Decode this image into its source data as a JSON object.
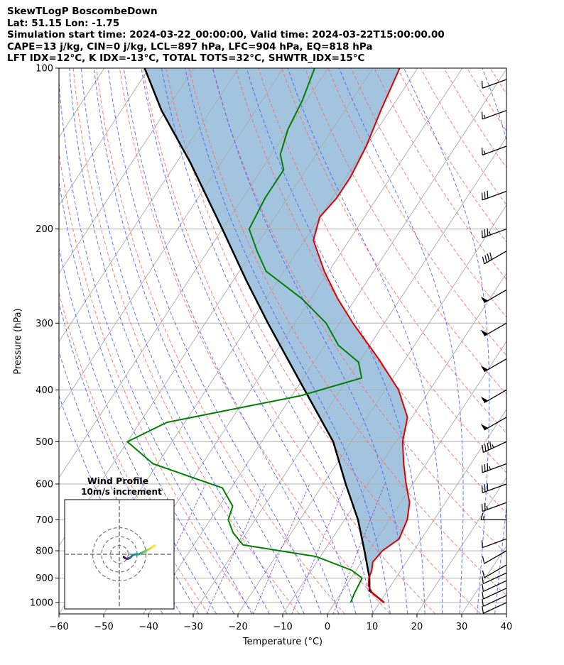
{
  "header": {
    "line1": "SkewTLogP BoscombeDown",
    "line2": "Lat: 51.15   Lon: -1.75",
    "line3": "Simulation start time: 2024-03-22_00:00:00, Valid time: 2024-03-22T15:00:00.00",
    "line4": "CAPE=13 j/kg, CIN=0 j/kg, LCL=897 hPa, LFC=904 hPa, EQ=818 hPa",
    "line5": "LFT IDX=12°C, K IDX=-13°C, TOTAL TOTS=32°C, SHWTR_IDX=15°C"
  },
  "chart_data": {
    "type": "line",
    "xlabel": "Temperature (°C)",
    "ylabel": "Pressure (hPa)",
    "xlim": [
      -60,
      40
    ],
    "ylim": [
      1050,
      100
    ],
    "y_scale": "log",
    "skew": true,
    "grid": true,
    "x_ticks": [
      -60,
      -50,
      -40,
      -30,
      -20,
      -10,
      0,
      10,
      20,
      30,
      40
    ],
    "y_ticks": [
      100,
      200,
      300,
      400,
      500,
      600,
      700,
      800,
      900,
      1000
    ],
    "colors": {
      "temperature": "#e00000",
      "dewpoint": "#008000",
      "parcel": "#000000",
      "cape_fill": "#a3c4de",
      "dry_adiabats": "#ff6666",
      "moist_adiabats": "#4a5cff",
      "mixing_ratio": "#9040c0",
      "isotherms": "#aaaaaa"
    },
    "series": [
      {
        "kind": "temperature",
        "points": [
          [
            1000,
            11
          ],
          [
            960,
            7
          ],
          [
            930,
            5
          ],
          [
            900,
            4
          ],
          [
            870,
            3.5
          ],
          [
            840,
            2.5
          ],
          [
            800,
            3
          ],
          [
            760,
            5
          ],
          [
            700,
            4
          ],
          [
            650,
            2
          ],
          [
            600,
            -1.5
          ],
          [
            550,
            -5
          ],
          [
            500,
            -8.5
          ],
          [
            450,
            -11
          ],
          [
            400,
            -17
          ],
          [
            350,
            -26
          ],
          [
            300,
            -37
          ],
          [
            270,
            -44
          ],
          [
            240,
            -51
          ],
          [
            210,
            -58
          ],
          [
            190,
            -60
          ],
          [
            175,
            -59
          ],
          [
            160,
            -59
          ],
          [
            140,
            -60
          ],
          [
            120,
            -62
          ],
          [
            100,
            -64
          ]
        ]
      },
      {
        "kind": "dewpoint",
        "points": [
          [
            1000,
            3.5
          ],
          [
            960,
            3
          ],
          [
            900,
            2.5
          ],
          [
            870,
            -1
          ],
          [
            820,
            -11
          ],
          [
            780,
            -29
          ],
          [
            740,
            -33
          ],
          [
            700,
            -36
          ],
          [
            660,
            -37
          ],
          [
            610,
            -42
          ],
          [
            550,
            -61
          ],
          [
            500,
            -70
          ],
          [
            460,
            -64
          ],
          [
            410,
            -38
          ],
          [
            380,
            -27
          ],
          [
            355,
            -30
          ],
          [
            330,
            -37
          ],
          [
            300,
            -43
          ],
          [
            270,
            -52
          ],
          [
            240,
            -64
          ],
          [
            220,
            -69
          ],
          [
            200,
            -74
          ],
          [
            175,
            -75
          ],
          [
            155,
            -75
          ],
          [
            145,
            -78
          ],
          [
            130,
            -80
          ],
          [
            115,
            -81
          ],
          [
            100,
            -83
          ]
        ]
      },
      {
        "kind": "parcel",
        "points": [
          [
            1000,
            11
          ],
          [
            950,
            6
          ],
          [
            897,
            4
          ],
          [
            800,
            -1
          ],
          [
            700,
            -7
          ],
          [
            600,
            -15
          ],
          [
            500,
            -24
          ],
          [
            400,
            -38
          ],
          [
            300,
            -56
          ],
          [
            250,
            -67
          ],
          [
            200,
            -80
          ],
          [
            150,
            -97
          ],
          [
            120,
            -111
          ],
          [
            100,
            -121
          ]
        ]
      }
    ],
    "wind_barbs": [
      {
        "p": 1000,
        "dir": 245,
        "speed_kt": 10
      },
      {
        "p": 970,
        "dir": 245,
        "speed_kt": 10
      },
      {
        "p": 940,
        "dir": 245,
        "speed_kt": 10
      },
      {
        "p": 910,
        "dir": 245,
        "speed_kt": 10
      },
      {
        "p": 880,
        "dir": 245,
        "speed_kt": 10
      },
      {
        "p": 850,
        "dir": 240,
        "speed_kt": 10
      },
      {
        "p": 800,
        "dir": 240,
        "speed_kt": 10
      },
      {
        "p": 760,
        "dir": 250,
        "speed_kt": 10
      },
      {
        "p": 700,
        "dir": 270,
        "speed_kt": 15
      },
      {
        "p": 650,
        "dir": 250,
        "speed_kt": 25
      },
      {
        "p": 600,
        "dir": 250,
        "speed_kt": 30
      },
      {
        "p": 550,
        "dir": 250,
        "speed_kt": 35
      },
      {
        "p": 500,
        "dir": 245,
        "speed_kt": 45
      },
      {
        "p": 450,
        "dir": 240,
        "speed_kt": 50
      },
      {
        "p": 400,
        "dir": 240,
        "speed_kt": 50
      },
      {
        "p": 350,
        "dir": 240,
        "speed_kt": 50
      },
      {
        "p": 300,
        "dir": 240,
        "speed_kt": 50
      },
      {
        "p": 260,
        "dir": 240,
        "speed_kt": 50
      },
      {
        "p": 220,
        "dir": 240,
        "speed_kt": 40
      },
      {
        "p": 200,
        "dir": 250,
        "speed_kt": 35
      },
      {
        "p": 170,
        "dir": 250,
        "speed_kt": 30
      },
      {
        "p": 140,
        "dir": 250,
        "speed_kt": 15
      },
      {
        "p": 120,
        "dir": 250,
        "speed_kt": 15
      },
      {
        "p": 105,
        "dir": 250,
        "speed_kt": 10
      }
    ],
    "hodograph": {
      "title": "Wind Profile",
      "subtitle": "10m/s increment",
      "rings_ms": [
        10,
        20,
        30
      ],
      "points": [
        [
          5,
          -3
        ],
        [
          6,
          -4
        ],
        [
          8,
          -5
        ],
        [
          10,
          -5
        ],
        [
          12,
          -4
        ],
        [
          13,
          -3
        ],
        [
          14,
          -2
        ],
        [
          15,
          -1
        ],
        [
          18,
          0
        ],
        [
          22,
          0
        ],
        [
          24,
          1
        ],
        [
          26,
          2
        ],
        [
          28,
          3
        ],
        [
          30,
          4
        ],
        [
          32,
          5
        ],
        [
          34,
          6
        ],
        [
          37,
          8
        ],
        [
          40,
          10
        ]
      ]
    }
  }
}
